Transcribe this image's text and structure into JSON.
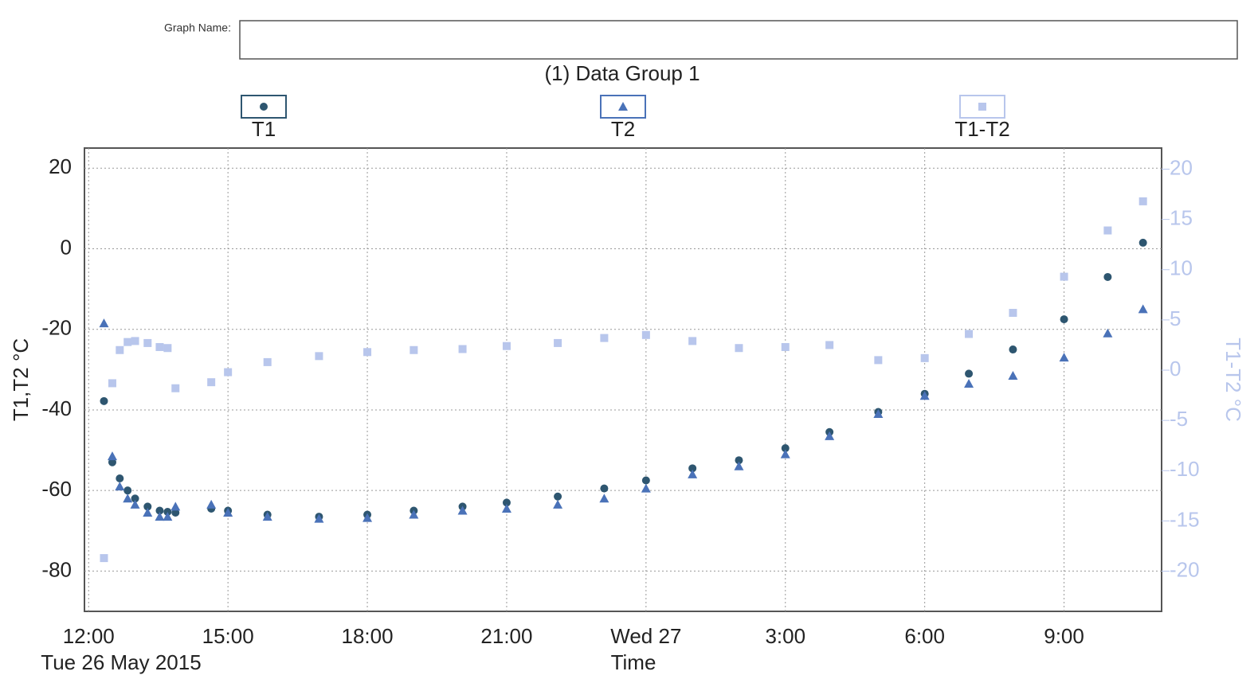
{
  "header": {
    "graph_name_label": "Graph Name:"
  },
  "chart_data": {
    "type": "scatter",
    "title": "(1) Data Group 1",
    "x_label": "Time",
    "x_sublabel": "Tue 26 May 2015",
    "y_label": "T1,T2   °C",
    "y2_label": "T1-T2   °C",
    "x": [
      12.33,
      12.51,
      12.67,
      12.84,
      13.0,
      13.27,
      13.53,
      13.7,
      13.87,
      14.64,
      15.0,
      15.85,
      16.96,
      18.0,
      19.0,
      20.05,
      21.0,
      22.1,
      23.1,
      24.0,
      25.0,
      26.0,
      27.0,
      27.95,
      29.0,
      30.0,
      30.95,
      31.9,
      33.0,
      33.94,
      34.7
    ],
    "series": [
      {
        "name": "T1",
        "color": "#2e5670",
        "marker": "circle",
        "axis": "y",
        "values": [
          -37.8,
          -53,
          -57,
          -60,
          -62,
          -64,
          -65,
          -65.3,
          -65.5,
          -64.5,
          -65,
          -66,
          -66.5,
          -66,
          -65,
          -64,
          -63,
          -61.5,
          -59.5,
          -57.5,
          -54.5,
          -52.5,
          -49.5,
          -45.5,
          -40.5,
          -36,
          -31,
          -25,
          -17.5,
          -7,
          1.5
        ]
      },
      {
        "name": "T2",
        "color": "#4a72b8",
        "marker": "triangle",
        "axis": "y",
        "values": [
          -18.5,
          -51.5,
          -59,
          -62,
          -63.5,
          -65.5,
          -66.5,
          -66.5,
          -64,
          -63.5,
          -65.5,
          -66.5,
          -67,
          -66.8,
          -66,
          -65,
          -64.5,
          -63.5,
          -62,
          -59.5,
          -56,
          -54,
          -51,
          -46.5,
          -41,
          -36.5,
          -33.5,
          -31.5,
          -27,
          -21,
          -15
        ]
      },
      {
        "name": "T1-T2",
        "color": "#b8c6ec",
        "marker": "square",
        "axis": "y2",
        "values": [
          -18.7,
          -1.3,
          2,
          2.8,
          2.9,
          2.7,
          2.3,
          2.2,
          -1.8,
          -1.2,
          -0.2,
          0.8,
          1.4,
          1.8,
          2.0,
          2.1,
          2.4,
          2.7,
          3.2,
          3.5,
          2.9,
          2.2,
          2.3,
          2.5,
          1.0,
          1.2,
          3.6,
          5.7,
          9.3,
          13.9,
          16.8
        ]
      }
    ],
    "xlim": [
      11.91,
      35.1
    ],
    "xticks": [
      {
        "value": 12,
        "label": "12:00"
      },
      {
        "value": 15,
        "label": "15:00"
      },
      {
        "value": 18,
        "label": "18:00"
      },
      {
        "value": 21,
        "label": "21:00"
      },
      {
        "value": 24,
        "label": "Wed 27"
      },
      {
        "value": 27,
        "label": "3:00"
      },
      {
        "value": 30,
        "label": "6:00"
      },
      {
        "value": 33,
        "label": "9:00"
      }
    ],
    "ylim": [
      -90,
      25
    ],
    "yticks": [
      -80,
      -60,
      -40,
      -20,
      0,
      20
    ],
    "y2lim": [
      -24,
      22.1
    ],
    "y2ticks": [
      -20,
      -15,
      -10,
      -5,
      0,
      5,
      10,
      15,
      20
    ],
    "grid": true
  }
}
